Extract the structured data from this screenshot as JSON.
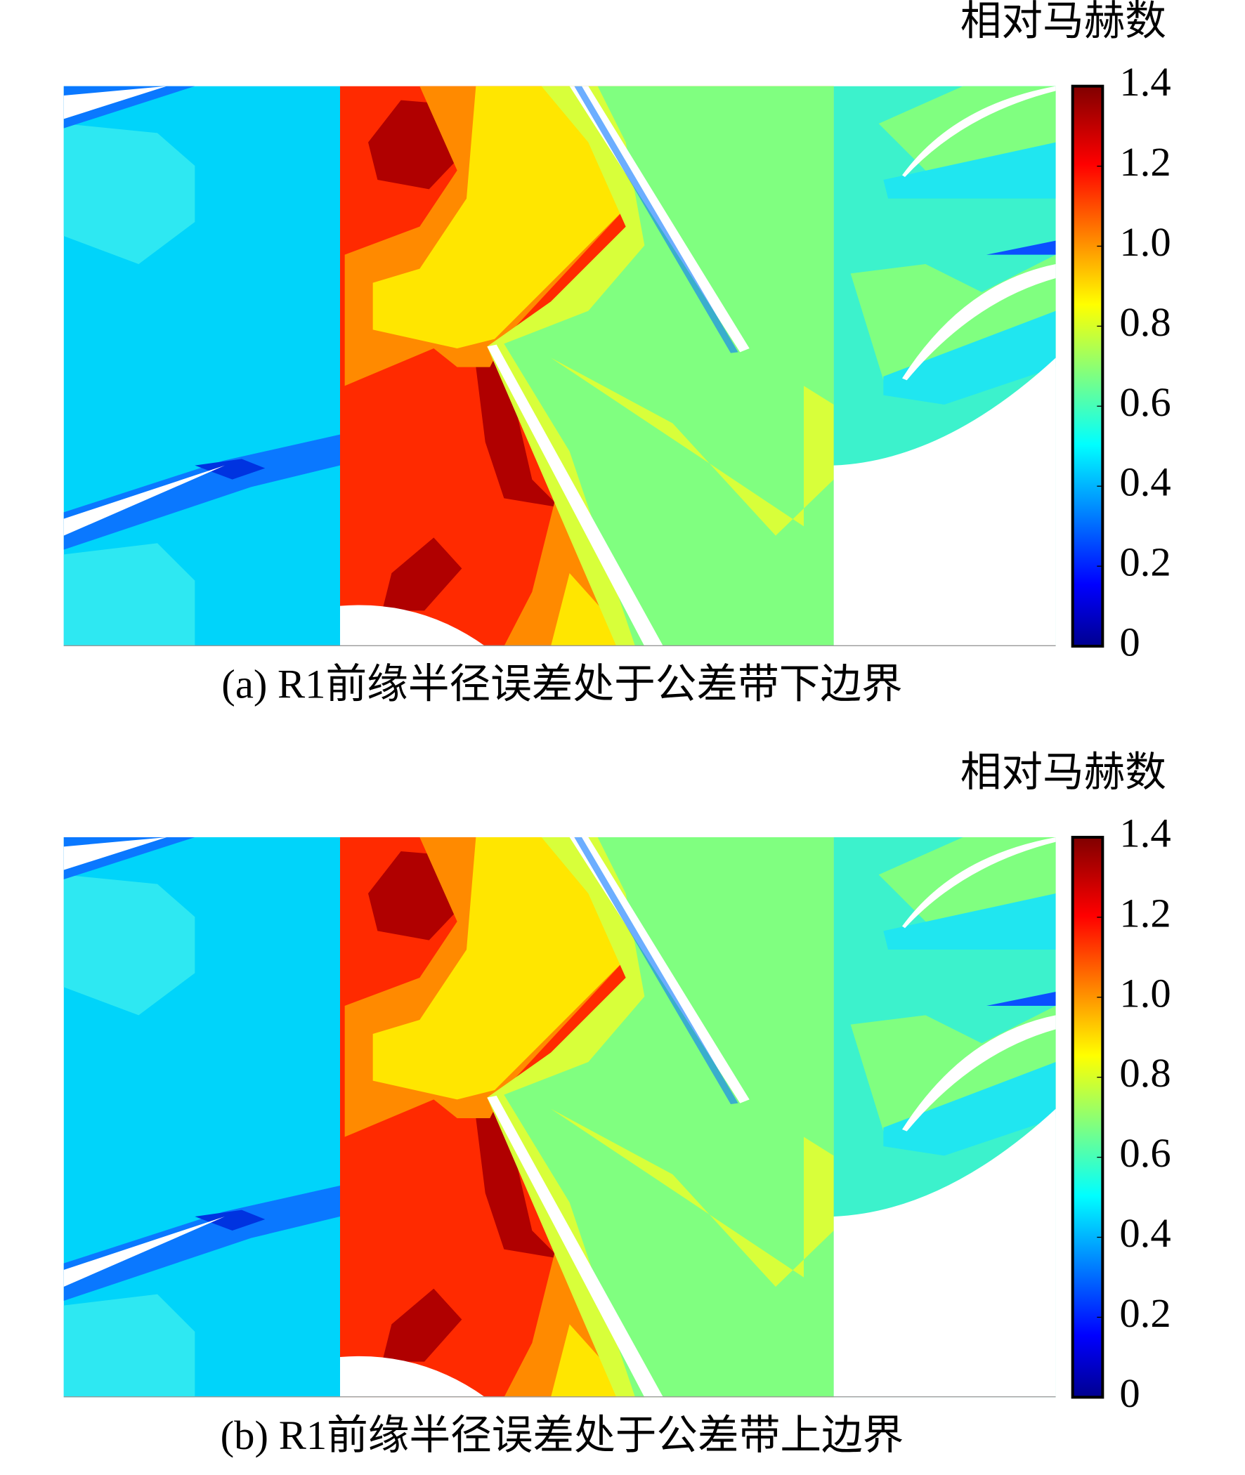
{
  "panels": [
    {
      "colorbar": {
        "title": "相对马赫数",
        "lim": [
          0,
          1.4
        ],
        "ticks": [
          1.4,
          1.2,
          {
            "value": 1,
            "label": "1.0"
          },
          0.8,
          0.6,
          0.4,
          0.2,
          0
        ]
      },
      "caption": "(a) R1前缘半径误差处于公差带下边界"
    },
    {
      "colorbar": {
        "title": "相对马赫数",
        "lim": [
          0,
          1.4
        ],
        "ticks": [
          1.4,
          1.2,
          {
            "value": 1,
            "label": "1.0"
          },
          0.8,
          0.6,
          0.4,
          0.2,
          0
        ]
      },
      "caption": "(b) R1前缘半径误差处于公差带上边界"
    }
  ]
}
